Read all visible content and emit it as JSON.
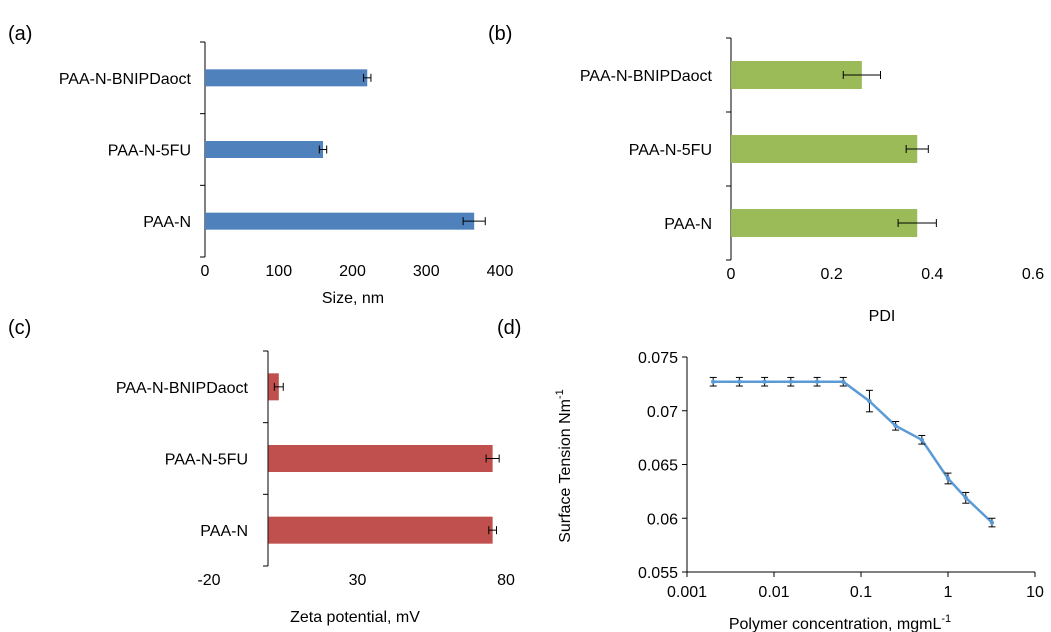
{
  "chart_data": [
    {
      "panel_label": "(a)",
      "type": "bar",
      "orientation": "horizontal",
      "categories": [
        "PAA-N-BNIPDaoct",
        "PAA-N-5FU",
        "PAA-N"
      ],
      "values": [
        220,
        160,
        365
      ],
      "errors": [
        5,
        5,
        15
      ],
      "xlabel": "Size, nm",
      "xlim": [
        0,
        400
      ],
      "xticks": [
        "0",
        "100",
        "200",
        "300",
        "400"
      ],
      "color": "#4f81bd"
    },
    {
      "panel_label": "(b)",
      "type": "bar",
      "orientation": "horizontal",
      "categories": [
        "PAA-N-BNIPDaoct",
        "PAA-N-5FU",
        "PAA-N"
      ],
      "values": [
        0.26,
        0.37,
        0.37
      ],
      "errors": [
        0.037,
        0.022,
        0.038
      ],
      "xlabel": "PDI",
      "xlim": [
        0,
        0.6
      ],
      "xticks": [
        "0",
        "0.2",
        "0.4",
        "0.6"
      ],
      "color": "#9bbb59"
    },
    {
      "panel_label": "(c)",
      "type": "bar",
      "orientation": "horizontal",
      "categories": [
        "PAA-N-BNIPDaoct",
        "PAA-N-5FU",
        "PAA-N"
      ],
      "values": [
        3.5,
        75.5,
        75.5
      ],
      "errors": [
        1.5,
        2.2,
        1.3
      ],
      "xlabel": "Zeta potential, mV",
      "xlim": [
        -20,
        80
      ],
      "xticks": [
        "-20",
        "30",
        "80"
      ],
      "color": "#c0504d"
    },
    {
      "panel_label": "(d)",
      "type": "line",
      "x": [
        0.002,
        0.004,
        0.0078,
        0.0156,
        0.0313,
        0.0625,
        0.125,
        0.25,
        0.5,
        1,
        1.6,
        3.2
      ],
      "y": [
        0.0727,
        0.0727,
        0.0727,
        0.0727,
        0.0727,
        0.0727,
        0.0709,
        0.0686,
        0.0673,
        0.0637,
        0.0619,
        0.0596
      ],
      "errors": [
        0.0004,
        0.0004,
        0.0004,
        0.0004,
        0.0004,
        0.0004,
        0.001,
        0.0004,
        0.0004,
        0.0005,
        0.0005,
        0.0004
      ],
      "xlabel_main": "Polymer concentration, mgmL",
      "xlabel_sup": "-1",
      "ylabel_main": "Surface Tension Nm",
      "ylabel_sup": "-1",
      "xscale": "log",
      "xlim": [
        0.001,
        10
      ],
      "ylim": [
        0.055,
        0.075
      ],
      "xticks": [
        "0.001",
        "0.01",
        "0.1",
        "1",
        "10"
      ],
      "yticks": [
        "0.055",
        "0.06",
        "0.065",
        "0.07",
        "0.075"
      ],
      "color": "#5b9bd5"
    }
  ]
}
